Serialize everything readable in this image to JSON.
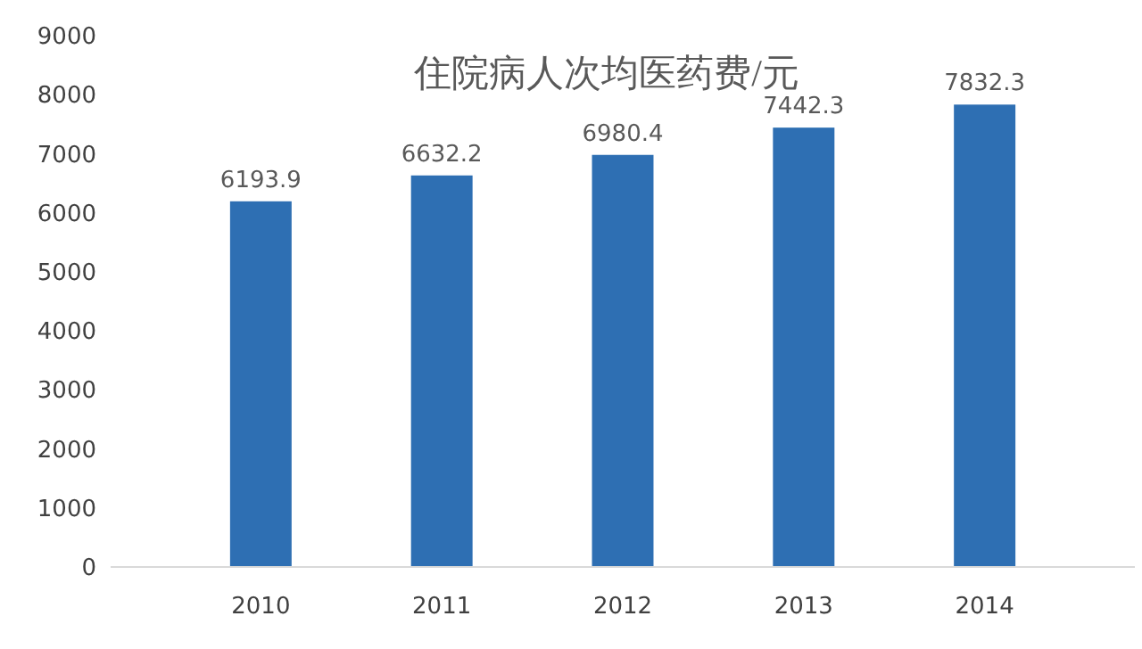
{
  "chart_data": {
    "type": "bar",
    "title": "住院病人次均医药费/元",
    "categories": [
      "2010",
      "2011",
      "2012",
      "2013",
      "2014"
    ],
    "values": [
      6193.9,
      6632.2,
      6980.4,
      7442.3,
      7832.3
    ],
    "color": "#2e6fb3",
    "ylim": [
      0,
      9000
    ],
    "yticks": [
      0,
      1000,
      2000,
      3000,
      4000,
      5000,
      6000,
      7000,
      8000,
      9000
    ],
    "data_labels": true,
    "grid": false
  }
}
